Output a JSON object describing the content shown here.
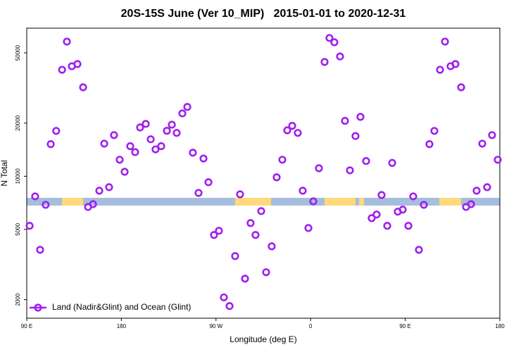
{
  "chart_data": {
    "type": "scatter",
    "title": "20S-15S June (Ver 10_MIP)   2015-01-01 to 2020-12-31",
    "x_label": "Longitude (deg E)",
    "y_label": "N Total",
    "log_y": true,
    "legend": "bottom-left",
    "xlim": [
      90,
      540
    ],
    "ylim": [
      1570,
      69000
    ],
    "xticks": [
      {
        "value": 90,
        "label": "90 E"
      },
      180,
      {
        "value": 270,
        "label": "90 W"
      },
      {
        "value": 360,
        "label": "0"
      },
      {
        "value": 450,
        "label": "90 E"
      },
      {
        "value": 540,
        "label": "180"
      }
    ],
    "yticks": [
      2000,
      5000,
      10000,
      20000,
      50000
    ],
    "x": [
      92.7,
      98,
      102.7,
      108,
      112.8,
      118,
      123.6,
      128.2,
      132.9,
      138.2,
      143.6,
      148.3,
      153,
      159,
      163.7,
      168.3,
      173,
      178.4,
      183.1,
      188.4,
      193.1,
      197.8,
      203.2,
      207.9,
      212.5,
      217.9,
      223.3,
      228,
      232.6,
      238,
      242.7,
      248,
      253.4,
      258.1,
      262.8,
      268.1,
      272.8,
      277.5,
      282.9,
      288.2,
      292.9,
      297.6,
      302.9,
      307.6,
      313,
      317.7,
      323,
      327.7,
      333.1,
      337.8,
      342.5,
      347.8,
      352.5,
      357.9,
      362.6,
      367.9,
      373.3,
      377.9,
      382.6,
      388,
      392.7,
      397.4,
      402.7,
      407.4,
      412.8,
      418.1,
      422.8,
      427.5,
      432.9,
      437.6,
      442.9,
      447.6,
      453,
      457.6,
      463,
      467.7,
      473,
      477.7,
      483.1,
      487.8,
      493.1,
      497.8,
      503.2,
      507.9,
      512.6,
      517.9,
      523.3,
      527.9,
      532.6,
      538
    ],
    "series": [
      {
        "name": "Land (Nadir&Glint) and Ocean (Glint)",
        "color": "#a020f0",
        "values": [
          5240,
          7690,
          3830,
          6890,
          15200,
          18070,
          40100,
          57900,
          42000,
          43200,
          31900,
          6700,
          6950,
          8280,
          15300,
          8670,
          17100,
          12400,
          10600,
          14800,
          13700,
          18900,
          19800,
          16200,
          14200,
          14800,
          18100,
          19600,
          17600,
          22700,
          24700,
          13600,
          8050,
          12600,
          9250,
          4650,
          4910,
          2060,
          1840,
          3530,
          7900,
          2630,
          5430,
          4650,
          6350,
          2860,
          4010,
          9860,
          12400,
          18200,
          19300,
          17600,
          8280,
          5090,
          7210,
          11100,
          44400,
          60700,
          57400,
          47700,
          20600,
          10800,
          16900,
          21700,
          12200,
          5790,
          6070,
          7830,
          5240,
          11900,
          6300,
          6470,
          5240,
          7690,
          3830,
          6890,
          15200,
          18070,
          40100,
          57900,
          42000,
          43200,
          31900,
          6700,
          6950,
          8280,
          15300,
          8670,
          17100,
          12400
        ]
      }
    ]
  }
}
